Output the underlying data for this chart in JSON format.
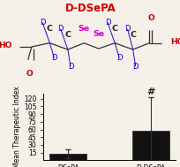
{
  "title": "D-DSePA",
  "title_color": "#cc0000",
  "bar_labels": [
    "DSePA",
    "D-DSePA"
  ],
  "bar_values": [
    13,
    58
  ],
  "bar_errors": [
    8,
    65
  ],
  "bar_color": "#111111",
  "ylabel": "Mean Therapeutic Index",
  "ylim": [
    0,
    130
  ],
  "yticks": [
    15,
    30,
    45,
    60,
    75,
    90,
    105,
    120
  ],
  "hash_label": "#",
  "bg_color": "#f5f0e8"
}
